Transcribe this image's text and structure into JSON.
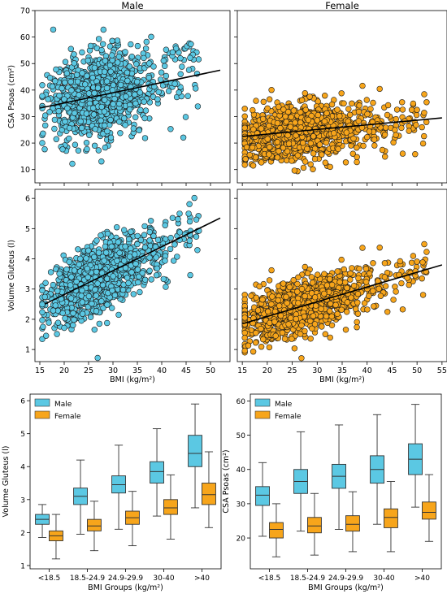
{
  "colors": {
    "male": "#5bc8e3",
    "female": "#f7a51b",
    "trend": "#000000",
    "marker_edge": "#1a1a1a"
  },
  "chart_data": [
    {
      "type": "scatter",
      "title": "Male",
      "xlabel": "",
      "ylabel": "CSA Psoas (cm²)",
      "xlim": [
        14,
        54
      ],
      "ylim": [
        5,
        70
      ],
      "xticks": [
        15,
        20,
        25,
        30,
        35,
        40,
        45,
        50
      ],
      "yticks": [
        10,
        20,
        30,
        40,
        50,
        60,
        70
      ],
      "show_xtick_labels": false,
      "series": [
        {
          "color": "male",
          "center": [
            27,
            38
          ],
          "spread": [
            5,
            7.5
          ]
        }
      ],
      "trend": [
        [
          15,
          33.2
        ],
        [
          52,
          47.5
        ]
      ]
    },
    {
      "type": "scatter",
      "title": "Female",
      "xlabel": "",
      "ylabel": "",
      "xlim": [
        14,
        56
      ],
      "ylim": [
        5,
        70
      ],
      "xticks": [
        15,
        20,
        25,
        30,
        35,
        40,
        45,
        50,
        55
      ],
      "yticks": [
        10,
        20,
        30,
        40,
        50,
        60,
        70
      ],
      "show_xtick_labels": false,
      "show_ytick_labels": false,
      "series": [
        {
          "color": "female",
          "center": [
            27,
            26
          ],
          "spread": [
            6,
            5
          ]
        }
      ],
      "trend": [
        [
          15,
          22.5
        ],
        [
          55,
          29.5
        ]
      ]
    },
    {
      "type": "scatter",
      "title": "",
      "xlabel": "BMI (kg/m²)",
      "ylabel": "Volume Gluteus (l)",
      "xlim": [
        14,
        54
      ],
      "ylim": [
        0.6,
        6.3
      ],
      "xticks": [
        15,
        20,
        25,
        30,
        35,
        40,
        45,
        50
      ],
      "yticks": [
        1,
        2,
        3,
        4,
        5,
        6
      ],
      "series": [
        {
          "color": "male",
          "center": [
            27,
            3.3
          ],
          "spread": [
            5,
            0.55
          ]
        }
      ],
      "trend": [
        [
          16,
          2.5
        ],
        [
          52,
          5.35
        ]
      ]
    },
    {
      "type": "scatter",
      "title": "",
      "xlabel": "BMI (kg/m²)",
      "ylabel": "",
      "xlim": [
        14,
        56
      ],
      "ylim": [
        0.6,
        6.3
      ],
      "xticks": [
        15,
        20,
        25,
        30,
        35,
        40,
        45,
        50,
        55
      ],
      "yticks": [
        1,
        2,
        3,
        4,
        5,
        6
      ],
      "show_ytick_labels": false,
      "series": [
        {
          "color": "female",
          "center": [
            27,
            2.55
          ],
          "spread": [
            6,
            0.45
          ]
        }
      ],
      "trend": [
        [
          15,
          1.85
        ],
        [
          55,
          3.8
        ]
      ]
    },
    {
      "type": "box",
      "xlabel": "BMI Groups (kg/m²)",
      "ylabel": "Volume Gluteus (l)",
      "categories": [
        "<18.5",
        "18.5-24.9",
        "24.9-29.9",
        "30-40",
        ">40"
      ],
      "ylim": [
        0.9,
        6.2
      ],
      "yticks": [
        1,
        2,
        3,
        4,
        5,
        6
      ],
      "legend": {
        "position": "top-left",
        "entries": [
          "Male",
          "Female"
        ]
      },
      "series": [
        {
          "name": "Male",
          "color": "male",
          "boxes": [
            [
              1.85,
              2.25,
              2.4,
              2.55,
              2.85
            ],
            [
              1.95,
              2.85,
              3.1,
              3.35,
              4.2
            ],
            [
              2.1,
              3.2,
              3.45,
              3.72,
              4.65
            ],
            [
              2.5,
              3.5,
              3.85,
              4.15,
              5.15
            ],
            [
              2.75,
              4.0,
              4.4,
              4.95,
              5.9
            ]
          ]
        },
        {
          "name": "Female",
          "color": "female",
          "boxes": [
            [
              1.2,
              1.75,
              1.9,
              2.05,
              2.55
            ],
            [
              1.45,
              2.05,
              2.2,
              2.4,
              2.95
            ],
            [
              1.6,
              2.25,
              2.45,
              2.65,
              3.25
            ],
            [
              1.8,
              2.55,
              2.75,
              3.0,
              3.75
            ],
            [
              2.15,
              2.85,
              3.15,
              3.5,
              4.45
            ]
          ]
        }
      ]
    },
    {
      "type": "box",
      "xlabel": "BMI Groups (kg/m²)",
      "ylabel": "CSA Psoas (cm²)",
      "categories": [
        "<18.5",
        "18.5-24.9",
        "24.9-29.9",
        "30-40",
        ">40"
      ],
      "ylim": [
        11,
        62
      ],
      "yticks": [
        20,
        30,
        40,
        50,
        60
      ],
      "legend": {
        "position": "top-left",
        "entries": [
          "Male",
          "Female"
        ]
      },
      "series": [
        {
          "name": "Male",
          "color": "male",
          "boxes": [
            [
              20.5,
              29.5,
              32.5,
              35,
              42
            ],
            [
              22,
              33,
              36.5,
              40,
              51
            ],
            [
              22.5,
              34.5,
              38,
              41.5,
              53
            ],
            [
              24,
              36,
              40,
              44,
              56
            ],
            [
              29,
              38.5,
              43,
              47.5,
              59
            ]
          ]
        },
        {
          "name": "Female",
          "color": "female",
          "boxes": [
            [
              14.5,
              20,
              22.5,
              24.5,
              30
            ],
            [
              15,
              21.5,
              23.5,
              26,
              33
            ],
            [
              16,
              22,
              24,
              26.5,
              33.5
            ],
            [
              16,
              23,
              26,
              28.5,
              36.5
            ],
            [
              19,
              25.5,
              27.5,
              30.5,
              38.5
            ]
          ]
        }
      ]
    }
  ]
}
